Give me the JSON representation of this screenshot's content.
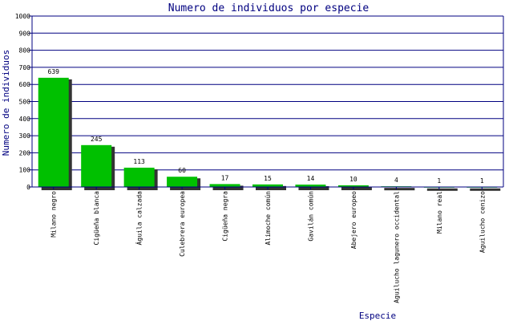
{
  "chart_data": {
    "type": "bar",
    "title": "Numero de individuos por especie",
    "xlabel": "Especie",
    "ylabel": "Numero de individuos",
    "ylim": [
      0,
      1000
    ],
    "yticks": [
      0,
      100,
      200,
      300,
      400,
      500,
      600,
      700,
      800,
      900,
      1000
    ],
    "grid": true,
    "legend": "none",
    "categories": [
      "Milano negro",
      "Cigüeña blanca",
      "Águila calzada",
      "Culebrera europea",
      "Cigüeña negra",
      "Alimoche común",
      "Gavilán común",
      "Abejero europeo",
      "Aguilucho lagunero occidental",
      "Milano real",
      "Aguilucho cenizo"
    ],
    "values": [
      639,
      245,
      113,
      60,
      17,
      15,
      14,
      10,
      4,
      1,
      1
    ],
    "colors": {
      "bar": "#00c000",
      "bar_shadow": "#333333",
      "grid": "#000080",
      "axis": "#000080",
      "title": "#000080"
    }
  }
}
